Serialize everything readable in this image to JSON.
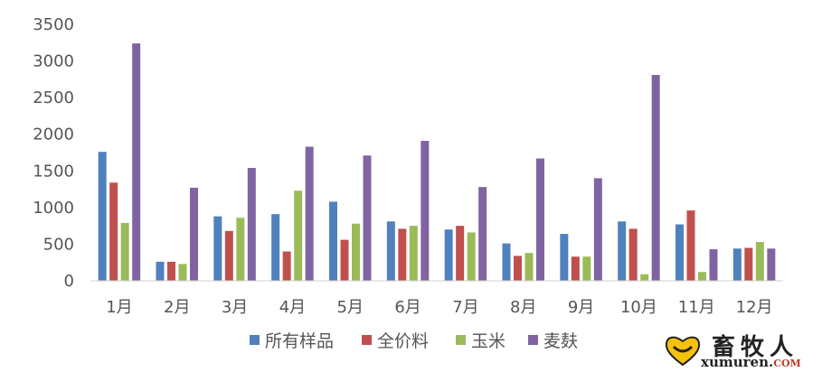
{
  "chart_data": {
    "type": "bar",
    "title": "",
    "xlabel": "",
    "ylabel": "",
    "categories": [
      "1月",
      "2月",
      "3月",
      "4月",
      "5月",
      "6月",
      "7月",
      "8月",
      "9月",
      "10月",
      "11月",
      "12月"
    ],
    "ylim": [
      0,
      3500
    ],
    "yticks": [
      0,
      500,
      1000,
      1500,
      2000,
      2500,
      3000,
      3500
    ],
    "grid": false,
    "legend_position": "bottom",
    "series": [
      {
        "name": "所有样品",
        "color": "#4f81bd",
        "values": [
          1760,
          260,
          880,
          910,
          1080,
          810,
          700,
          510,
          640,
          810,
          770,
          440
        ]
      },
      {
        "name": "全价料",
        "color": "#c0504d",
        "values": [
          1340,
          260,
          680,
          400,
          560,
          710,
          750,
          340,
          330,
          710,
          960,
          450
        ]
      },
      {
        "name": "玉米",
        "color": "#9bbb59",
        "values": [
          790,
          230,
          860,
          1230,
          780,
          750,
          660,
          380,
          330,
          90,
          120,
          530
        ]
      },
      {
        "name": "麦麸",
        "color": "#8064a2",
        "values": [
          3240,
          1270,
          1540,
          1830,
          1710,
          1910,
          1280,
          1670,
          1400,
          2810,
          430,
          440
        ]
      }
    ]
  },
  "watermark": {
    "logo_cn": "畜牧人",
    "logo_en_main": "xumuren.",
    "logo_en_suffix": "COM"
  }
}
